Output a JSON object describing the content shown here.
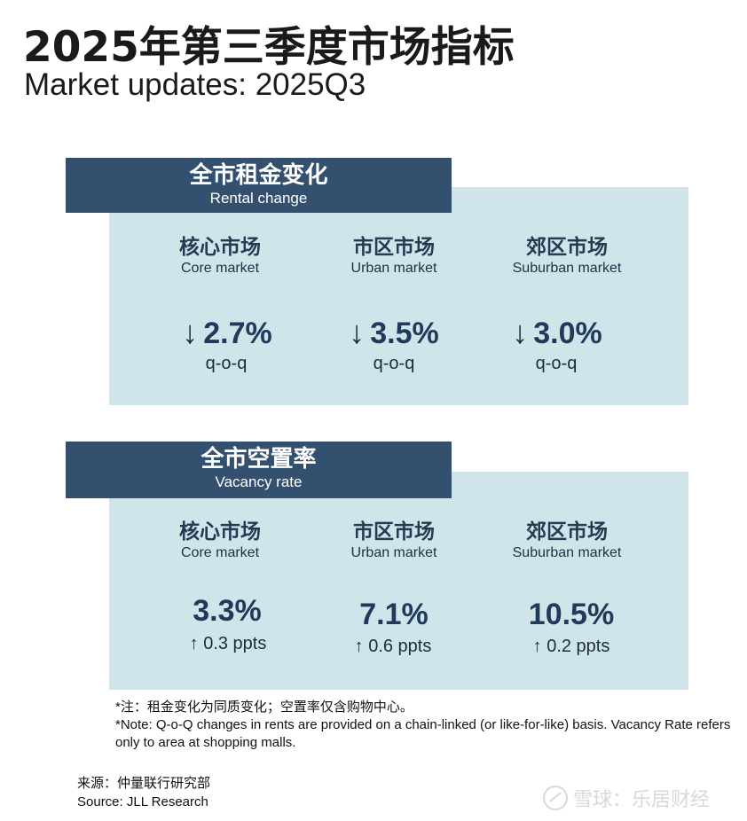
{
  "title": {
    "cn": "2025年第三季度市场指标",
    "en": "Market updates: 2025Q3"
  },
  "rental": {
    "header_cn": "全市租金变化",
    "header_en": "Rental change",
    "markets": [
      {
        "cn": "核心市场",
        "en": "Core market",
        "arrow": "↓",
        "value": "2.7%",
        "sub": "q-o-q"
      },
      {
        "cn": "市区市场",
        "en": "Urban market",
        "arrow": "↓",
        "value": "3.5%",
        "sub": "q-o-q"
      },
      {
        "cn": "郊区市场",
        "en": "Suburban market",
        "arrow": "↓",
        "value": "3.0%",
        "sub": "q-o-q"
      }
    ]
  },
  "vacancy": {
    "header_cn": "全市空置率",
    "header_en": "Vacancy rate",
    "markets": [
      {
        "cn": "核心市场",
        "en": "Core market",
        "value": "3.3%",
        "change": "↑ 0.3 ppts"
      },
      {
        "cn": "市区市场",
        "en": "Urban market",
        "value": "7.1%",
        "change": "↑ 0.6 ppts"
      },
      {
        "cn": "郊区市场",
        "en": "Suburban market",
        "value": "10.5%",
        "change": "↑ 0.2 ppts"
      }
    ]
  },
  "notes": {
    "cn": "*注：租金变化为同质变化；空置率仅含购物中心。",
    "en": "*Note: Q-o-Q changes in rents are provided on a chain-linked (or like-for-like) basis. Vacancy Rate refers only to area at shopping malls."
  },
  "source": {
    "cn": "来源：仲量联行研究部",
    "en": "Source: JLL Research"
  },
  "watermark": {
    "text": "雪球：乐居财经",
    "icon": "snowball-logo-icon"
  },
  "colors": {
    "header_bg": "#34506f",
    "panel_bg": "#cfe5ea",
    "value_text": "#213a59"
  }
}
